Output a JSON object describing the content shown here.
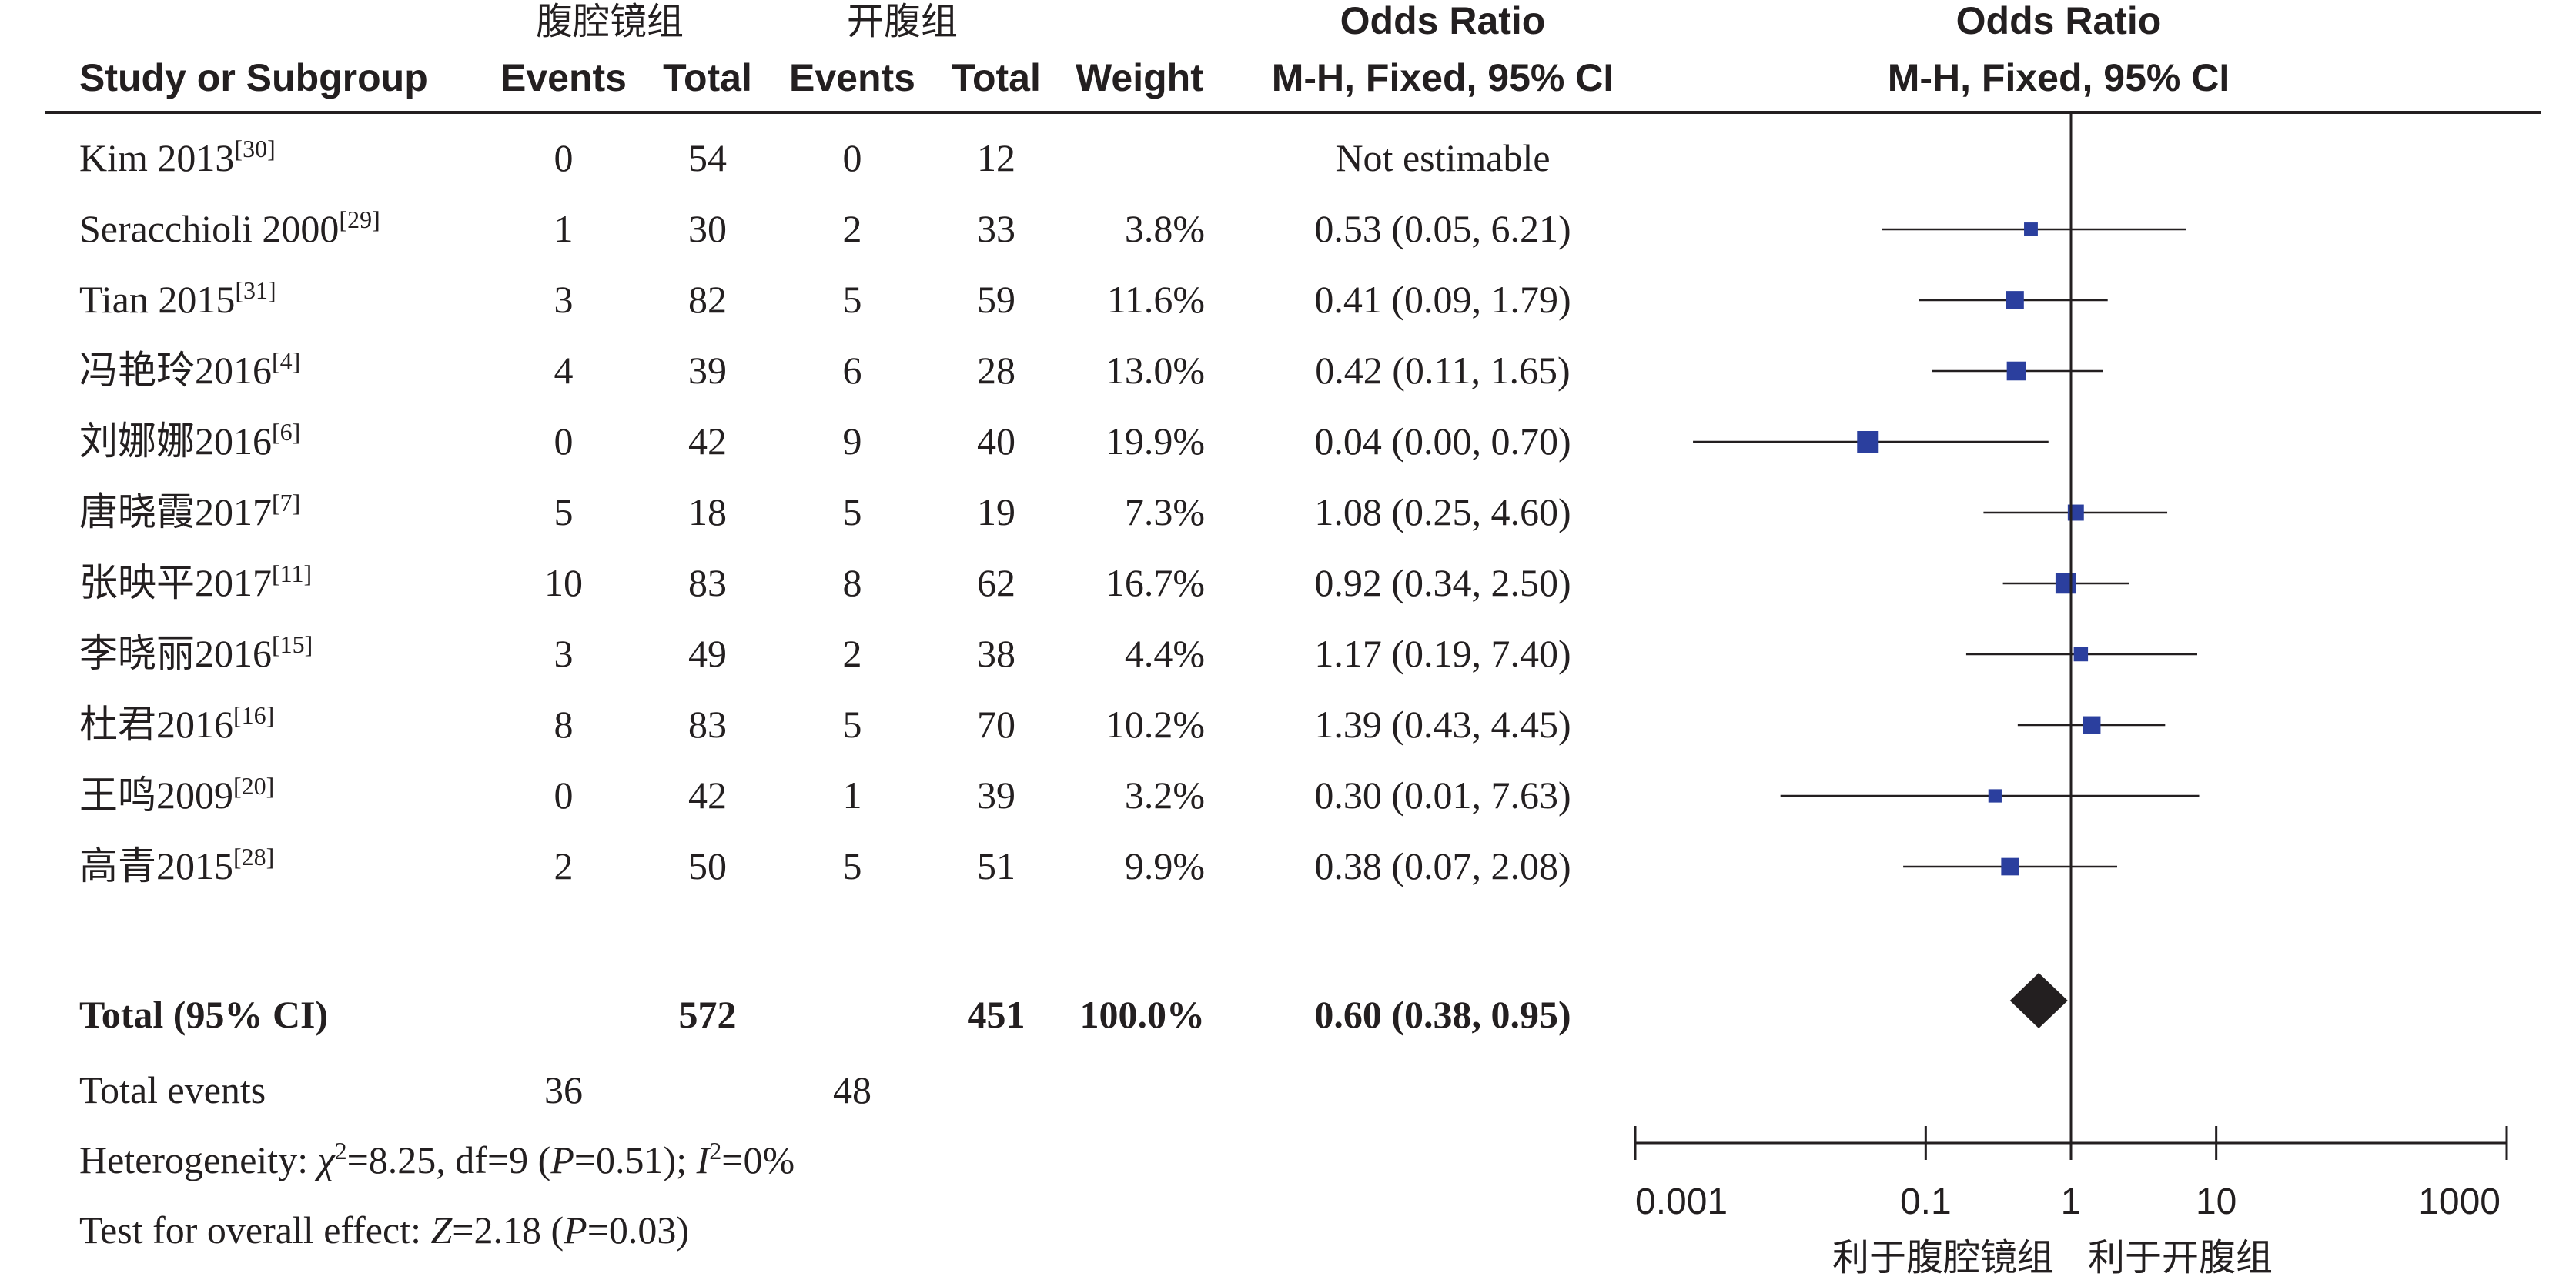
{
  "header": {
    "group1": "腹腔镜组",
    "group2": "开腹组",
    "study": "Study or Subgroup",
    "events1": "Events",
    "total1": "Total",
    "events2": "Events",
    "total2": "Total",
    "weight": "Weight",
    "or_title": "Odds Ratio",
    "or_method": "M-H, Fixed, 95% CI",
    "plot_title": "Odds Ratio",
    "plot_method": "M-H, Fixed, 95% CI"
  },
  "chart_data": {
    "type": "forest",
    "x_scale": "log",
    "xlim": [
      0.001,
      1000
    ],
    "xticks": [
      "0.001",
      "0.1",
      "1",
      "10",
      "1000"
    ],
    "xlabel_left": "利于腹腔镜组",
    "xlabel_right": "利于开腹组",
    "marker_color": "#2b3f9e",
    "studies": [
      {
        "name": "Kim 2013",
        "ref": "[30]",
        "events1": "0",
        "total1": "54",
        "events2": "0",
        "total2": "12",
        "weight": "",
        "or_text": "Not estimable",
        "or": null,
        "lo": null,
        "hi": null,
        "w": 0
      },
      {
        "name": "Seracchioli 2000",
        "ref": "[29]",
        "events1": "1",
        "total1": "30",
        "events2": "2",
        "total2": "33",
        "weight": "3.8%",
        "or_text": "0.53 (0.05, 6.21)",
        "or": 0.53,
        "lo": 0.05,
        "hi": 6.21,
        "w": 3.8
      },
      {
        "name": "Tian 2015",
        "ref": "[31]",
        "events1": "3",
        "total1": "82",
        "events2": "5",
        "total2": "59",
        "weight": "11.6%",
        "or_text": "0.41 (0.09, 1.79)",
        "or": 0.41,
        "lo": 0.09,
        "hi": 1.79,
        "w": 11.6
      },
      {
        "name": "冯艳玲2016",
        "ref": "[4]",
        "events1": "4",
        "total1": "39",
        "events2": "6",
        "total2": "28",
        "weight": "13.0%",
        "or_text": "0.42 (0.11, 1.65)",
        "or": 0.42,
        "lo": 0.11,
        "hi": 1.65,
        "w": 13.0
      },
      {
        "name": "刘娜娜2016",
        "ref": "[6]",
        "events1": "0",
        "total1": "42",
        "events2": "9",
        "total2": "40",
        "weight": "19.9%",
        "or_text": "0.04 (0.00, 0.70)",
        "or": 0.04,
        "lo": 0.0025,
        "hi": 0.7,
        "w": 19.9
      },
      {
        "name": "唐晓霞2017",
        "ref": "[7]",
        "events1": "5",
        "total1": "18",
        "events2": "5",
        "total2": "19",
        "weight": "7.3%",
        "or_text": "1.08 (0.25, 4.60)",
        "or": 1.08,
        "lo": 0.25,
        "hi": 4.6,
        "w": 7.3
      },
      {
        "name": "张映平2017",
        "ref": "[11]",
        "events1": "10",
        "total1": "83",
        "events2": "8",
        "total2": "62",
        "weight": "16.7%",
        "or_text": "0.92 (0.34, 2.50)",
        "or": 0.92,
        "lo": 0.34,
        "hi": 2.5,
        "w": 16.7
      },
      {
        "name": "李晓丽2016",
        "ref": "[15]",
        "events1": "3",
        "total1": "49",
        "events2": "2",
        "total2": "38",
        "weight": "4.4%",
        "or_text": "1.17 (0.19, 7.40)",
        "or": 1.17,
        "lo": 0.19,
        "hi": 7.4,
        "w": 4.4
      },
      {
        "name": "杜君2016",
        "ref": "[16]",
        "events1": "8",
        "total1": "83",
        "events2": "5",
        "total2": "70",
        "weight": "10.2%",
        "or_text": "1.39 (0.43, 4.45)",
        "or": 1.39,
        "lo": 0.43,
        "hi": 4.45,
        "w": 10.2
      },
      {
        "name": "王鸣2009",
        "ref": "[20]",
        "events1": "0",
        "total1": "42",
        "events2": "1",
        "total2": "39",
        "weight": "3.2%",
        "or_text": "0.30 (0.01, 7.63)",
        "or": 0.3,
        "lo": 0.01,
        "hi": 7.63,
        "w": 3.2
      },
      {
        "name": "高青2015",
        "ref": "[28]",
        "events1": "2",
        "total1": "50",
        "events2": "5",
        "total2": "51",
        "weight": "9.9%",
        "or_text": "0.38 (0.07, 2.08)",
        "or": 0.38,
        "lo": 0.07,
        "hi": 2.08,
        "w": 9.9
      }
    ],
    "total": {
      "label": "Total (95% CI)",
      "total1": "572",
      "total2": "451",
      "weight": "100.0%",
      "or_text": "0.60 (0.38, 0.95)",
      "or": 0.6,
      "lo": 0.38,
      "hi": 0.95
    },
    "total_events": {
      "label": "Total events",
      "events1": "36",
      "events2": "48"
    },
    "heterogeneity": {
      "prefix": "Heterogeneity: ",
      "chi": "χ",
      "chi_val": "=8.25, df=9 (",
      "p": "P",
      "p_val": "=0.51); ",
      "i": "I",
      "i_val": "=0%",
      "sup": "2"
    },
    "overall": {
      "prefix": "Test for overall effect: ",
      "z": "Z",
      "z_val": "=2.18 (",
      "p": "P",
      "p_val": "=0.03)"
    }
  }
}
